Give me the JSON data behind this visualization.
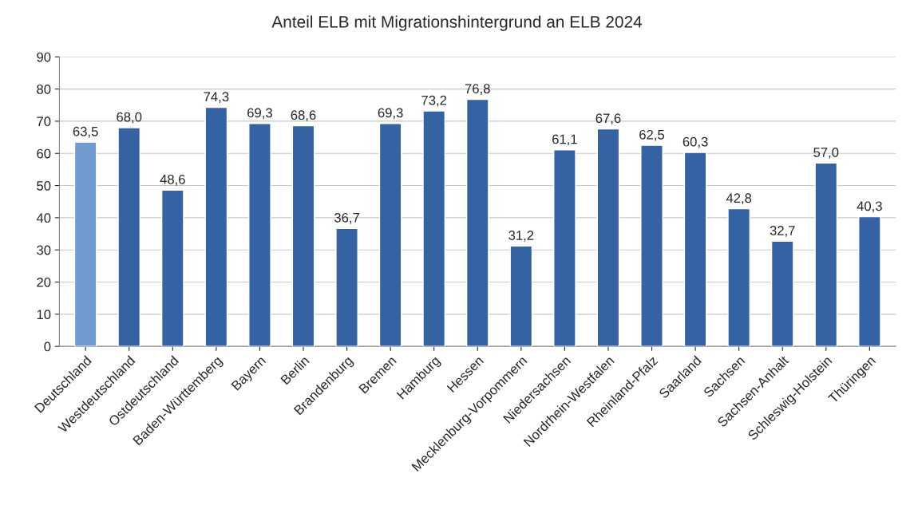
{
  "chart_data": {
    "type": "bar",
    "title": "Anteil ELB mit Migrationshintergrund an ELB 2024",
    "categories": [
      "Deutschland",
      "Westdeutschland",
      "Ostdeutschland",
      "Baden-Württemberg",
      "Bayern",
      "Berlin",
      "Brandenburg",
      "Bremen",
      "Hamburg",
      "Hessen",
      "Mecklenburg-Vorpommern",
      "Niedersachsen",
      "Nordrhein-Westfalen",
      "Rheinland-Pfalz",
      "Saarland",
      "Sachsen",
      "Sachsen-Anhalt",
      "Schleswig-Holstein",
      "Thüringen"
    ],
    "values": [
      63.5,
      68.0,
      48.6,
      74.3,
      69.3,
      68.6,
      36.7,
      69.3,
      73.2,
      76.8,
      31.2,
      61.1,
      67.6,
      62.5,
      60.3,
      42.8,
      32.7,
      57.0,
      40.3
    ],
    "value_labels": [
      "63,5",
      "68,0",
      "48,6",
      "74,3",
      "69,3",
      "68,6",
      "36,7",
      "69,3",
      "73,2",
      "76,8",
      "31,2",
      "61,1",
      "67,6",
      "62,5",
      "60,3",
      "42,8",
      "32,7",
      "57,0",
      "40,3"
    ],
    "colors": [
      "#6f9bd1",
      "#3462a3",
      "#3462a3",
      "#3462a3",
      "#3462a3",
      "#3462a3",
      "#3462a3",
      "#3462a3",
      "#3462a3",
      "#3462a3",
      "#3462a3",
      "#3462a3",
      "#3462a3",
      "#3462a3",
      "#3462a3",
      "#3462a3",
      "#3462a3",
      "#3462a3",
      "#3462a3"
    ],
    "ylim": [
      0,
      90
    ],
    "yticks": [
      0,
      10,
      20,
      30,
      40,
      50,
      60,
      70,
      80,
      90
    ],
    "grid": "y"
  }
}
